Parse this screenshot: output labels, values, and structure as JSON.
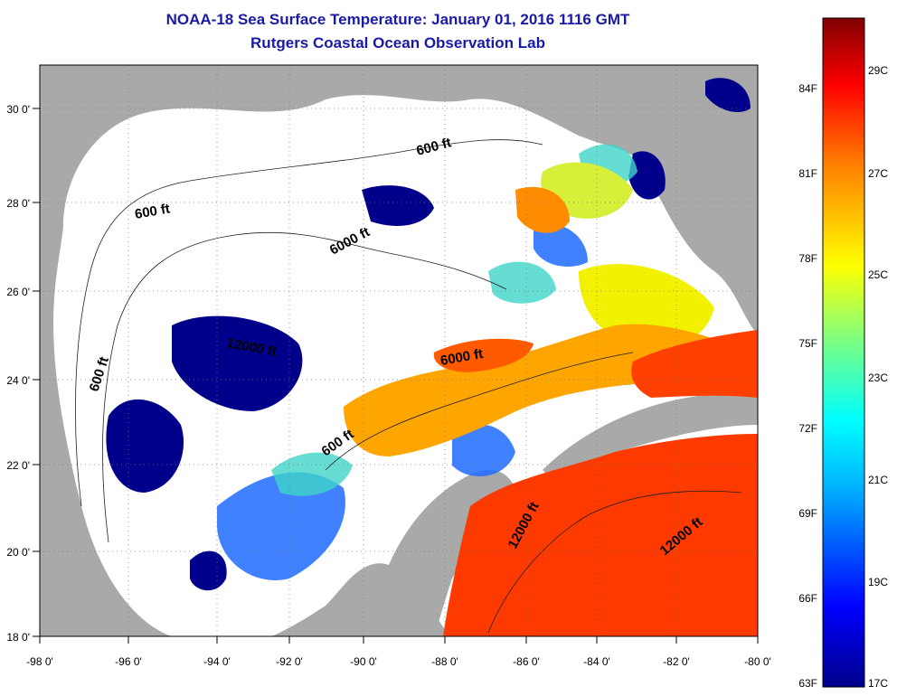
{
  "header": {
    "title": "NOAA-18 Sea Surface Temperature:  January 01, 2016 1116 GMT",
    "subtitle": "Rutgers Coastal Ocean Observation Lab"
  },
  "map": {
    "lon_ticks": [
      "-98 0'",
      "-96 0'",
      "-94 0'",
      "-92 0'",
      "-90 0'",
      "-88 0'",
      "-86 0'",
      "-84 0'",
      "-82 0'",
      "-80 0'"
    ],
    "lat_ticks": [
      "30 0'",
      "28 0'",
      "26 0'",
      "24 0'",
      "22 0'",
      "20 0'",
      "18 0'"
    ],
    "depth_labels": [
      "600 ft",
      "600 ft",
      "6000 ft",
      "12000 ft",
      "600 ft",
      "6000 ft",
      "600 ft",
      "12000 ft",
      "12000 ft"
    ],
    "colors": {
      "land": "#a9a9a9",
      "no_data": "#ffffff",
      "cold": "#00008b",
      "warm": "#ff3a00",
      "mid": "#ffa500"
    }
  },
  "colorbar": {
    "fahrenheit": [
      "84F",
      "81F",
      "78F",
      "75F",
      "72F",
      "69F",
      "66F",
      "63F"
    ],
    "celsius": [
      "29C",
      "27C",
      "25C",
      "23C",
      "21C",
      "19C",
      "17C"
    ]
  }
}
